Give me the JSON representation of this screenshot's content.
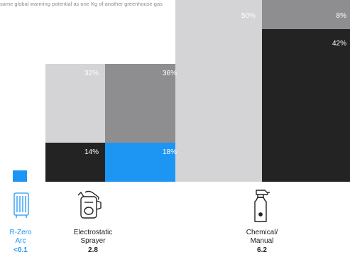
{
  "footnote": "same global warming potential as one Kg of another greenhouse gas",
  "colors": {
    "light_gray": "#d4d4d6",
    "mid_gray": "#8e8e91",
    "dark": "#232323",
    "blue": "#1d96f3",
    "accent_text": "#1d96f3",
    "label_text": "#222222"
  },
  "chart_data": {
    "type": "bar",
    "style": "stacked-area-proportional (marimekko-like)",
    "categories": [
      {
        "name_lines": [
          "R-Zero",
          "Arc"
        ],
        "value_label": "<0.1",
        "value": 0.1,
        "icon": "air-purifier-icon"
      },
      {
        "name_lines": [
          "Electrostatic",
          "Sprayer"
        ],
        "value_label": "2.8",
        "value": 2.8,
        "icon": "electrostatic-sprayer-icon"
      },
      {
        "name_lines": [
          "Chemical/",
          "Manual"
        ],
        "value_label": "6.2",
        "value": 6.2,
        "icon": "spray-bottle-icon"
      }
    ],
    "segments": [
      {
        "category": 1,
        "position": "top-left",
        "label": "32%",
        "value": 32,
        "color": "light_gray"
      },
      {
        "category": 1,
        "position": "top-right",
        "label": "36%",
        "value": 36,
        "color": "mid_gray"
      },
      {
        "category": 1,
        "position": "bottom-left",
        "label": "14%",
        "value": 14,
        "color": "dark"
      },
      {
        "category": 1,
        "position": "bottom-right",
        "label": "18%",
        "value": 18,
        "color": "blue"
      },
      {
        "category": 2,
        "position": "left",
        "label": "50%",
        "value": 50,
        "color": "light_gray"
      },
      {
        "category": 2,
        "position": "top-right",
        "label": "8%",
        "value": 8,
        "color": "mid_gray"
      },
      {
        "category": 2,
        "position": "bottom-right",
        "label": "42%",
        "value": 42,
        "color": "dark"
      }
    ]
  }
}
